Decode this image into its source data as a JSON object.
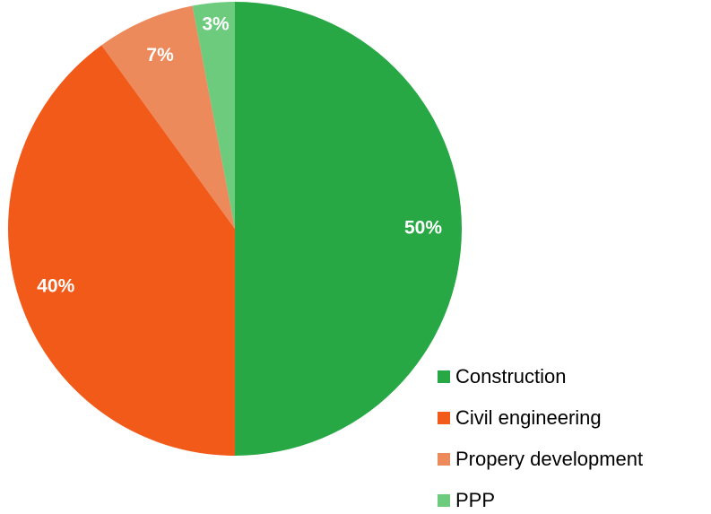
{
  "chart_data": {
    "type": "pie",
    "categories": [
      "Construction",
      "Civil engineering",
      "Propery development",
      "PPP"
    ],
    "values": [
      50,
      40,
      7,
      3
    ],
    "value_labels": [
      "50%",
      "40%",
      "7%",
      "3%"
    ],
    "colors": [
      "#27a844",
      "#f25a1a",
      "#ec8a5c",
      "#6ccb7d"
    ],
    "legend": "bottom-right"
  }
}
